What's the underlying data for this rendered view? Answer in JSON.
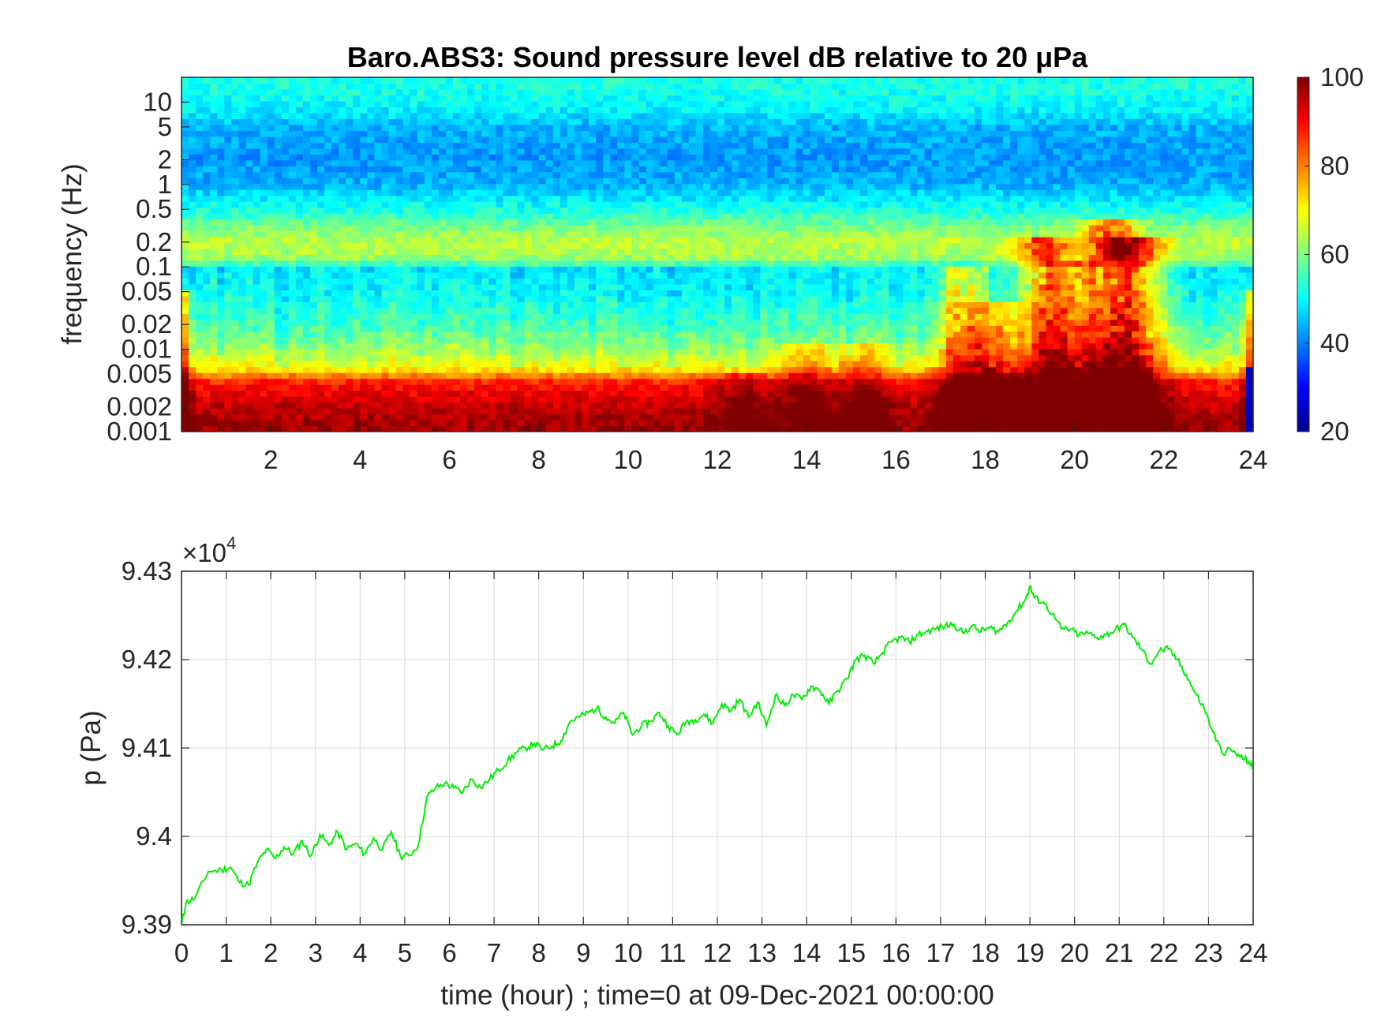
{
  "chart_data": [
    {
      "type": "heatmap",
      "title": "Baro.ABS3: Sound pressure level dB relative to 20 μPa",
      "xlabel": "",
      "ylabel": "frequency (Hz)",
      "x_range": [
        0,
        24
      ],
      "x_ticks": [
        "2",
        "4",
        "6",
        "8",
        "10",
        "12",
        "14",
        "16",
        "18",
        "20",
        "22",
        "24"
      ],
      "y_scale": "log",
      "y_range": [
        0.001,
        20
      ],
      "y_ticks": [
        "0.001",
        "0.002",
        "0.005",
        "0.01",
        "0.02",
        "0.05",
        "0.1",
        "0.2",
        "0.5",
        "1",
        "2",
        "5",
        "10"
      ],
      "colorbar": {
        "colormap": "jet",
        "range": [
          20,
          100
        ],
        "ticks": [
          "20",
          "40",
          "60",
          "80",
          "100"
        ]
      },
      "bands_db_by_frequency": [
        {
          "freq": 15,
          "db": 52
        },
        {
          "freq": 8,
          "db": 49
        },
        {
          "freq": 5,
          "db": 44
        },
        {
          "freq": 2,
          "db": 42
        },
        {
          "freq": 1,
          "db": 44
        },
        {
          "freq": 0.5,
          "db": 52
        },
        {
          "freq": 0.3,
          "db": 60
        },
        {
          "freq": 0.2,
          "db": 65
        },
        {
          "freq": 0.12,
          "db": 62
        },
        {
          "freq": 0.1,
          "db": 48
        },
        {
          "freq": 0.05,
          "db": 50
        },
        {
          "freq": 0.02,
          "db": 55
        },
        {
          "freq": 0.01,
          "db": 62
        },
        {
          "freq": 0.006,
          "db": 70
        },
        {
          "freq": 0.004,
          "db": 88
        },
        {
          "freq": 0.002,
          "db": 95
        },
        {
          "freq": 0.001,
          "db": 98
        }
      ],
      "hot_bursts": [
        {
          "t": 12.6,
          "fmax": 0.004,
          "gain": 10
        },
        {
          "t": 14.0,
          "fmax": 0.01,
          "gain": 12
        },
        {
          "t": 15.3,
          "fmax": 0.01,
          "gain": 12
        },
        {
          "t": 17.5,
          "fmax": 0.08,
          "gain": 25
        },
        {
          "t": 18.2,
          "fmax": 0.03,
          "gain": 20
        },
        {
          "t": 19.3,
          "fmax": 0.2,
          "gain": 28
        },
        {
          "t": 20.0,
          "fmax": 0.1,
          "gain": 24
        },
        {
          "t": 20.8,
          "fmax": 0.3,
          "gain": 30
        },
        {
          "t": 21.4,
          "fmax": 0.2,
          "gain": 28
        }
      ]
    },
    {
      "type": "line",
      "title": "",
      "xlabel": "time (hour) ; time=0 at 09-Dec-2021 00:00:00",
      "ylabel": "p (Pa)",
      "exponent_label": "×10",
      "exponent_power": "4",
      "xlim": [
        0,
        24
      ],
      "ylim": [
        93900,
        94300
      ],
      "x_ticks": [
        "0",
        "1",
        "2",
        "3",
        "4",
        "5",
        "6",
        "7",
        "8",
        "9",
        "10",
        "11",
        "12",
        "13",
        "14",
        "15",
        "16",
        "17",
        "18",
        "19",
        "20",
        "21",
        "22",
        "23",
        "24"
      ],
      "y_ticks": [
        "9.39",
        "9.4",
        "9.41",
        "9.42",
        "9.43"
      ],
      "grid": true,
      "series": [
        {
          "color": "#00ee00",
          "x": [
            0,
            0.1,
            0.3,
            0.6,
            0.9,
            1.1,
            1.3,
            1.5,
            1.7,
            1.9,
            2.1,
            2.3,
            2.5,
            2.7,
            2.9,
            3.1,
            3.3,
            3.5,
            3.7,
            3.9,
            4.1,
            4.3,
            4.5,
            4.7,
            4.9,
            5.1,
            5.3,
            5.5,
            5.7,
            5.9,
            6.1,
            6.3,
            6.5,
            6.7,
            6.9,
            7.1,
            7.3,
            7.5,
            7.7,
            7.9,
            8.1,
            8.3,
            8.5,
            8.7,
            8.9,
            9.1,
            9.3,
            9.5,
            9.7,
            9.9,
            10.1,
            10.3,
            10.5,
            10.7,
            10.9,
            11.1,
            11.3,
            11.5,
            11.7,
            11.9,
            12.1,
            12.3,
            12.5,
            12.7,
            12.9,
            13.1,
            13.3,
            13.5,
            13.7,
            13.9,
            14.1,
            14.3,
            14.5,
            14.7,
            14.9,
            15.1,
            15.3,
            15.5,
            15.7,
            15.9,
            16.1,
            16.3,
            16.5,
            16.7,
            16.9,
            17.1,
            17.3,
            17.5,
            17.7,
            17.9,
            18.1,
            18.3,
            18.5,
            18.7,
            18.9,
            19.0,
            19.1,
            19.3,
            19.5,
            19.7,
            19.9,
            20.1,
            20.3,
            20.5,
            20.7,
            20.9,
            21.1,
            21.3,
            21.5,
            21.7,
            21.9,
            22.1,
            22.3,
            22.5,
            22.7,
            22.9,
            23.1,
            23.3,
            23.5,
            23.7,
            23.9,
            24.0
          ],
          "y": [
            93900,
            93925,
            93930,
            93960,
            93962,
            93965,
            93948,
            93945,
            93970,
            93985,
            93975,
            93988,
            93980,
            93995,
            93978,
            94002,
            93990,
            94005,
            93985,
            93992,
            93980,
            93998,
            93985,
            94005,
            93978,
            93978,
            93990,
            94045,
            94055,
            94060,
            94055,
            94050,
            94065,
            94055,
            94065,
            94075,
            94085,
            94095,
            94100,
            94105,
            94098,
            94102,
            94108,
            94130,
            94135,
            94140,
            94145,
            94135,
            94128,
            94140,
            94115,
            94125,
            94130,
            94140,
            94125,
            94115,
            94130,
            94132,
            94138,
            94128,
            94150,
            94142,
            94155,
            94135,
            94152,
            94125,
            94160,
            94148,
            94160,
            94155,
            94170,
            94165,
            94150,
            94165,
            94178,
            94200,
            94205,
            94195,
            94208,
            94220,
            94225,
            94220,
            94228,
            94232,
            94235,
            94238,
            94240,
            94230,
            94238,
            94232,
            94236,
            94232,
            94242,
            94255,
            94268,
            94283,
            94270,
            94265,
            94252,
            94235,
            94234,
            94228,
            94230,
            94225,
            94228,
            94233,
            94240,
            94225,
            94212,
            94195,
            94210,
            94212,
            94200,
            94183,
            94162,
            94145,
            94118,
            94095,
            94098,
            94090,
            94085,
            94075
          ]
        }
      ]
    }
  ]
}
